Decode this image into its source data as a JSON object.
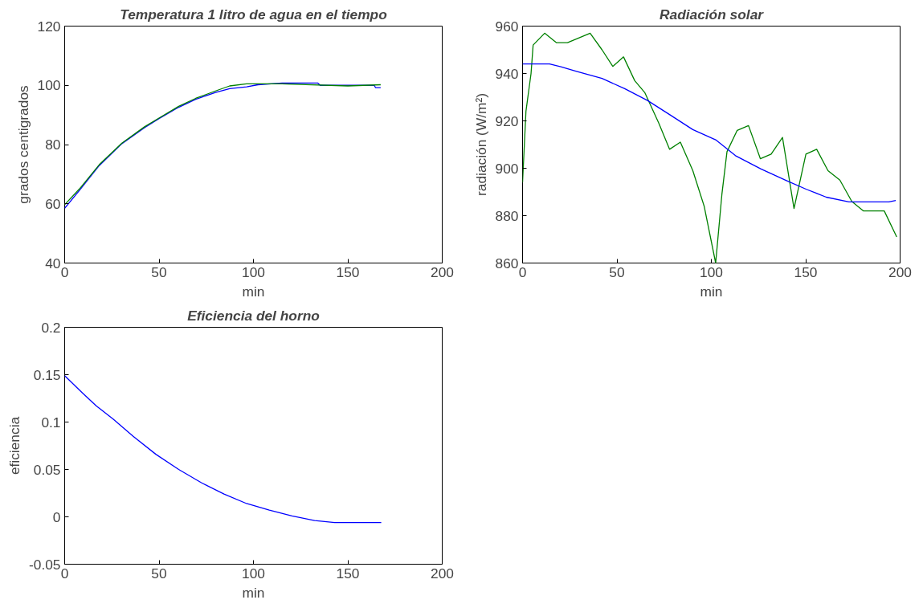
{
  "chart_data": [
    {
      "type": "line",
      "title": "Temperatura 1 litro de agua en el tiempo",
      "xlabel": "min",
      "ylabel": "grados centigrados",
      "xlim": [
        0,
        200
      ],
      "ylim": [
        40,
        120
      ],
      "xticks": [
        0,
        50,
        100,
        150,
        200
      ],
      "yticks": [
        40,
        60,
        80,
        100,
        120
      ],
      "grid": false,
      "series": [
        {
          "color": "#0000ff",
          "x": [
            0,
            7.8,
            18.3,
            30.3,
            42.3,
            49.8,
            60.4,
            69.4,
            79.9,
            87.4,
            96.4,
            102.4,
            115.2,
            134,
            135.4,
            164,
            164.7,
            167.4
          ],
          "values": [
            58.5,
            64.5,
            72.9,
            80.3,
            85.7,
            88.7,
            92.6,
            95.3,
            97.6,
            98.9,
            99.5,
            100.2,
            100.8,
            100.8,
            100,
            100,
            99.2,
            99.2
          ]
        },
        {
          "color": "#008000",
          "x": [
            0,
            7.8,
            18.3,
            30.3,
            42.3,
            49.8,
            60.4,
            69.4,
            79.9,
            87.4,
            96.4,
            115,
            150,
            167.4
          ],
          "values": [
            59.7,
            65,
            73.2,
            80.5,
            86,
            88.9,
            92.9,
            95.6,
            98.1,
            99.8,
            100.5,
            100.5,
            99.8,
            100.2
          ]
        }
      ]
    },
    {
      "type": "line",
      "title": "Radiación solar",
      "xlabel": "min",
      "ylabel": "radiación (W/m²)",
      "xlim": [
        0,
        200
      ],
      "ylim": [
        860,
        960
      ],
      "xticks": [
        0,
        50,
        100,
        150,
        200
      ],
      "yticks": [
        860,
        880,
        900,
        920,
        940,
        960
      ],
      "grid": false,
      "series": [
        {
          "color": "#008000",
          "x": [
            0,
            1.8,
            4.5,
            5.6,
            11.7,
            18,
            23.8,
            35.8,
            42.1,
            47.8,
            53.5,
            59.4,
            64.7,
            72.2,
            77.9,
            83.6,
            90.2,
            96.2,
            102.3,
            105.6,
            108.3,
            113.7,
            119.7,
            126,
            131.7,
            137.7,
            143.8,
            150.1,
            155.8,
            161.8,
            168.1,
            174.4,
            180.5,
            191.6,
            198.2
          ],
          "values": [
            894,
            924,
            940,
            952,
            957,
            953,
            953,
            957,
            950,
            943,
            947,
            937,
            932,
            919,
            908,
            911,
            899,
            884,
            860,
            889,
            907,
            916,
            918,
            904,
            906,
            913,
            883,
            906,
            908,
            899,
            895,
            886,
            882,
            882,
            871
          ]
        },
        {
          "color": "#0000ff",
          "x": [
            0,
            14.3,
            20.3,
            28.6,
            42.1,
            54.1,
            66.2,
            78.2,
            90.2,
            102.3,
            112.8,
            126.3,
            139.8,
            150.4,
            160.9,
            172.9,
            194,
            197.7
          ],
          "values": [
            944,
            944,
            942.8,
            940.9,
            937.9,
            933.6,
            928.6,
            922.5,
            916.3,
            912,
            905.3,
            899.7,
            894.8,
            891.1,
            887.8,
            885.8,
            885.8,
            886.4
          ]
        }
      ]
    },
    {
      "type": "line",
      "title": "Eficiencia del horno",
      "xlabel": "min",
      "ylabel": "eficiencia",
      "xlim": [
        0,
        200
      ],
      "ylim": [
        -0.05,
        0.2
      ],
      "xticks": [
        0,
        50,
        100,
        150,
        200
      ],
      "yticks": [
        -0.05,
        0,
        0.05,
        0.1,
        0.15,
        0.2
      ],
      "grid": false,
      "series": [
        {
          "color": "#0000ff",
          "x": [
            0,
            9.3,
            16.8,
            25.8,
            36.3,
            48.3,
            60.4,
            72.4,
            84.4,
            96.4,
            108.4,
            120.4,
            132.4,
            143,
            167.7
          ],
          "values": [
            0.149,
            0.131,
            0.117,
            0.103,
            0.085,
            0.066,
            0.05,
            0.036,
            0.024,
            0.014,
            0.007,
            0.001,
            -0.004,
            -0.006,
            -0.006
          ]
        }
      ]
    }
  ]
}
